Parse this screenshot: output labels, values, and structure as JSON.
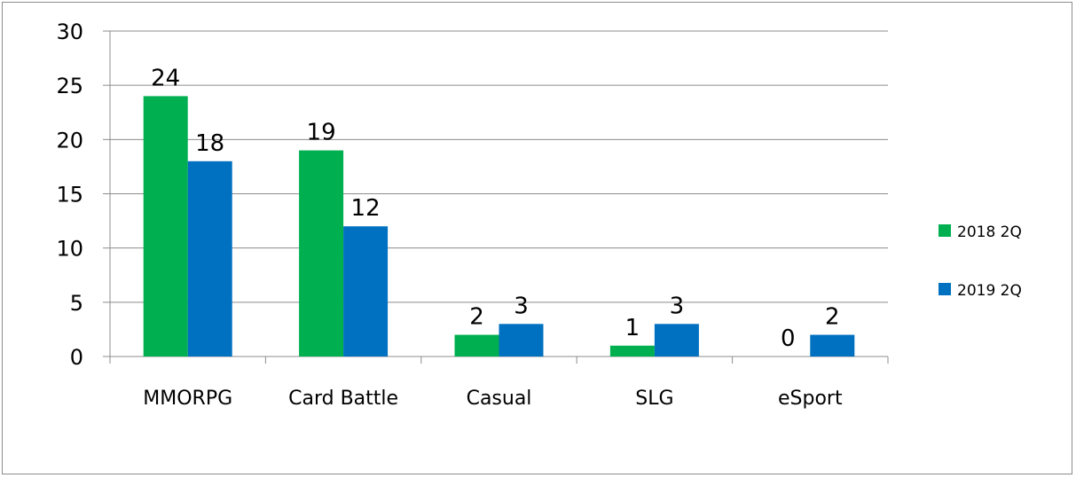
{
  "chart_data": {
    "type": "bar",
    "categories": [
      "MMORPG",
      "Card Battle",
      "Casual",
      "SLG",
      "eSport"
    ],
    "series": [
      {
        "name": "2018 2Q",
        "values": [
          24,
          19,
          2,
          1,
          0
        ],
        "color": "#00b050"
      },
      {
        "name": "2019 2Q",
        "values": [
          18,
          12,
          3,
          3,
          2
        ],
        "color": "#0070c0"
      }
    ],
    "yticks": [
      "0",
      "5",
      "10",
      "15",
      "20",
      "25",
      "30"
    ],
    "ylim": [
      0,
      30
    ],
    "grid": true,
    "legend_position": "right",
    "title": "",
    "xlabel": "",
    "ylabel": ""
  }
}
